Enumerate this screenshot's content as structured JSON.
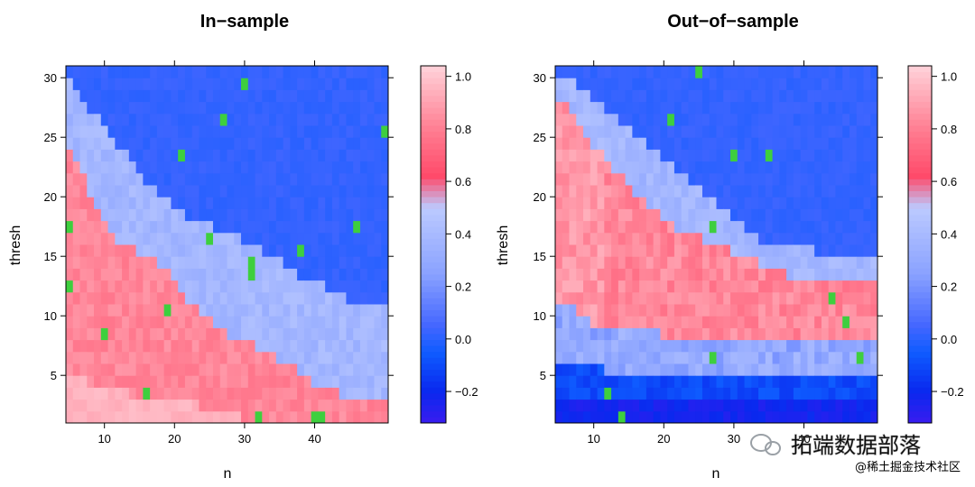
{
  "chart_data": [
    {
      "type": "heatmap",
      "title": "In−sample",
      "xlabel": "n",
      "ylabel": "thresh",
      "xlim": [
        4.5,
        50.5
      ],
      "ylim": [
        1,
        31
      ],
      "xticks": [
        10,
        20,
        30,
        40
      ],
      "yticks": [
        5,
        10,
        15,
        20,
        25,
        30
      ],
      "colorbar": {
        "range": [
          -0.32,
          1.04
        ],
        "ticks": [
          "−0.2",
          "0.0",
          "0.2",
          "0.4",
          "0.6",
          "0.8",
          "1.0"
        ],
        "tick_values": [
          -0.2,
          0.0,
          0.2,
          0.4,
          0.6,
          0.8,
          1.0
        ]
      },
      "colormap": {
        "low": "#3a1cf0",
        "deep_blue": "#0a28ee",
        "blue": "#0f5cff",
        "flat": "#4466ff",
        "light_blue": "#8aa2ff",
        "lavender": "#bccaff",
        "red_high": "#ff4a6a",
        "pink": "#ff7e92",
        "light_pink": "#ffd3da"
      },
      "description_of_values": "value is ~0.0 (blue) in the upper-right triangle; ~0.3-0.45 (light blue) band along the diagonal; ~0.7-0.9 (pink/red) in the lower-left region below the diagonal; ~0.95 (pale pink) at low thresh and small n",
      "regions": {
        "flat_boundary": [
          [
            5,
            30
          ],
          [
            8,
            27
          ],
          [
            12,
            24
          ],
          [
            16,
            21
          ],
          [
            22,
            18
          ],
          [
            30,
            16
          ],
          [
            38,
            13
          ],
          [
            45,
            11
          ],
          [
            50.5,
            10
          ]
        ],
        "high_boundary": [
          [
            5,
            24
          ],
          [
            8,
            20
          ],
          [
            12,
            16
          ],
          [
            18,
            14
          ],
          [
            22,
            11
          ],
          [
            28,
            8
          ],
          [
            35,
            6
          ],
          [
            40,
            4
          ],
          [
            44,
            3
          ],
          [
            50.5,
            2
          ]
        ],
        "pale_boundary": [
          [
            5,
            5
          ],
          [
            8,
            4
          ],
          [
            14,
            3
          ],
          [
            24,
            2
          ],
          [
            30,
            1
          ]
        ]
      },
      "values_by_region": {
        "flat": 0.02,
        "band": 0.38,
        "high": 0.82,
        "pale": 0.95
      }
    },
    {
      "type": "heatmap",
      "title": "Out−of−sample",
      "xlabel": "n",
      "ylabel": "thresh",
      "xlim": [
        4.5,
        50.5
      ],
      "ylim": [
        1,
        31
      ],
      "xticks": [
        10,
        20,
        30,
        40
      ],
      "yticks": [
        5,
        10,
        15,
        20,
        25,
        30
      ],
      "colorbar": {
        "range": [
          -0.32,
          1.04
        ],
        "ticks": [
          "−0.2",
          "0.0",
          "0.2",
          "0.4",
          "0.6",
          "0.8",
          "1.0"
        ],
        "tick_values": [
          -0.2,
          0.0,
          0.2,
          0.4,
          0.6,
          0.8,
          1.0
        ]
      },
      "colormap": {
        "low": "#3a1cf0",
        "deep_blue": "#0a28ee",
        "blue": "#0f5cff",
        "flat": "#4466ff",
        "light_blue": "#8aa2ff",
        "lavender": "#bccaff",
        "red_high": "#ff4a6a",
        "pink": "#ff7e92",
        "light_pink": "#ffd3da"
      },
      "description_of_values": "value ~0.0 in the upper-right; ~0.3-0.45 band along the diagonal; ~0.7-0.9 red band from upper-left to mid-right at thresh 8-13; negative values (~-0.1 to -0.25) in the bottom rows for n above ~9",
      "regions": {
        "flat_boundary": [
          [
            5,
            30
          ],
          [
            10,
            28
          ],
          [
            16,
            25
          ],
          [
            22,
            22
          ],
          [
            28,
            19
          ],
          [
            34,
            16
          ],
          [
            42,
            15
          ],
          [
            50.5,
            14
          ]
        ],
        "high_boundary": [
          [
            5,
            28
          ],
          [
            10,
            24
          ],
          [
            16,
            20
          ],
          [
            22,
            17
          ],
          [
            30,
            15
          ],
          [
            38,
            13
          ],
          [
            50.5,
            12
          ]
        ],
        "mid_low_boundary": [
          [
            5,
            11
          ],
          [
            10,
            9
          ],
          [
            20,
            8
          ],
          [
            30,
            8
          ],
          [
            40,
            8
          ],
          [
            50.5,
            8
          ]
        ],
        "neg_boundary": [
          [
            8,
            6
          ],
          [
            12,
            5
          ],
          [
            50.5,
            5
          ]
        ],
        "deep_neg_boundary": [
          [
            8,
            3
          ],
          [
            50.5,
            3
          ]
        ]
      },
      "values_by_region": {
        "flat": 0.02,
        "band": 0.38,
        "high": 0.82,
        "mid_low": 0.3,
        "neg": -0.1,
        "deep_neg": -0.22
      }
    }
  ],
  "watermark": {
    "brand": "拓端数据部落",
    "site": "@稀土掘金技术社区"
  }
}
